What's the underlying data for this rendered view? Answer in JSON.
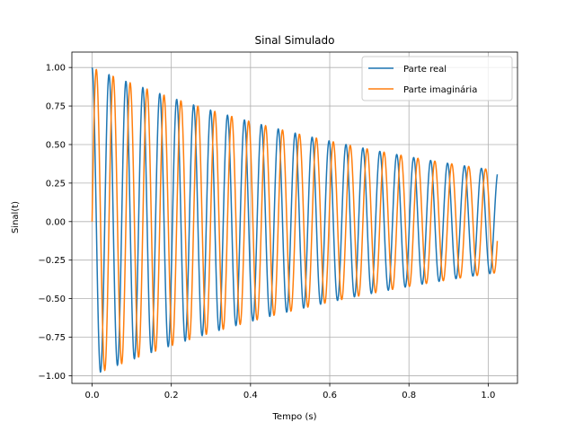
{
  "chart_data": {
    "type": "line",
    "title": "Sinal Simulado",
    "xlabel": "Tempo (s)",
    "ylabel": "Sinal(t)",
    "xlim": [
      -0.051,
      1.074
    ],
    "ylim": [
      -1.05,
      1.1
    ],
    "x_ticks": [
      0.0,
      0.2,
      0.4,
      0.6,
      0.8,
      1.0
    ],
    "x_tick_labels": [
      "0.0",
      "0.2",
      "0.4",
      "0.6",
      "0.8",
      "1.0"
    ],
    "y_ticks": [
      -1.0,
      -0.75,
      -0.5,
      -0.25,
      0.0,
      0.25,
      0.5,
      0.75,
      1.0
    ],
    "y_tick_labels": [
      "−1.00",
      "−0.75",
      "−0.50",
      "−0.25",
      "0.00",
      "0.25",
      "0.50",
      "0.75",
      "1.00"
    ],
    "grid": true,
    "legend_position": "top-right",
    "signal_model": {
      "frequency_hz": 23.4,
      "decay_rate": 1.08,
      "t_start": 0.0,
      "t_end": 1.023,
      "samples": 1024
    },
    "series": [
      {
        "name": "Parte real",
        "color": "#1f77b4",
        "function": "cos"
      },
      {
        "name": "Parte imaginária",
        "color": "#ff7f0e",
        "function": "sin"
      }
    ]
  }
}
